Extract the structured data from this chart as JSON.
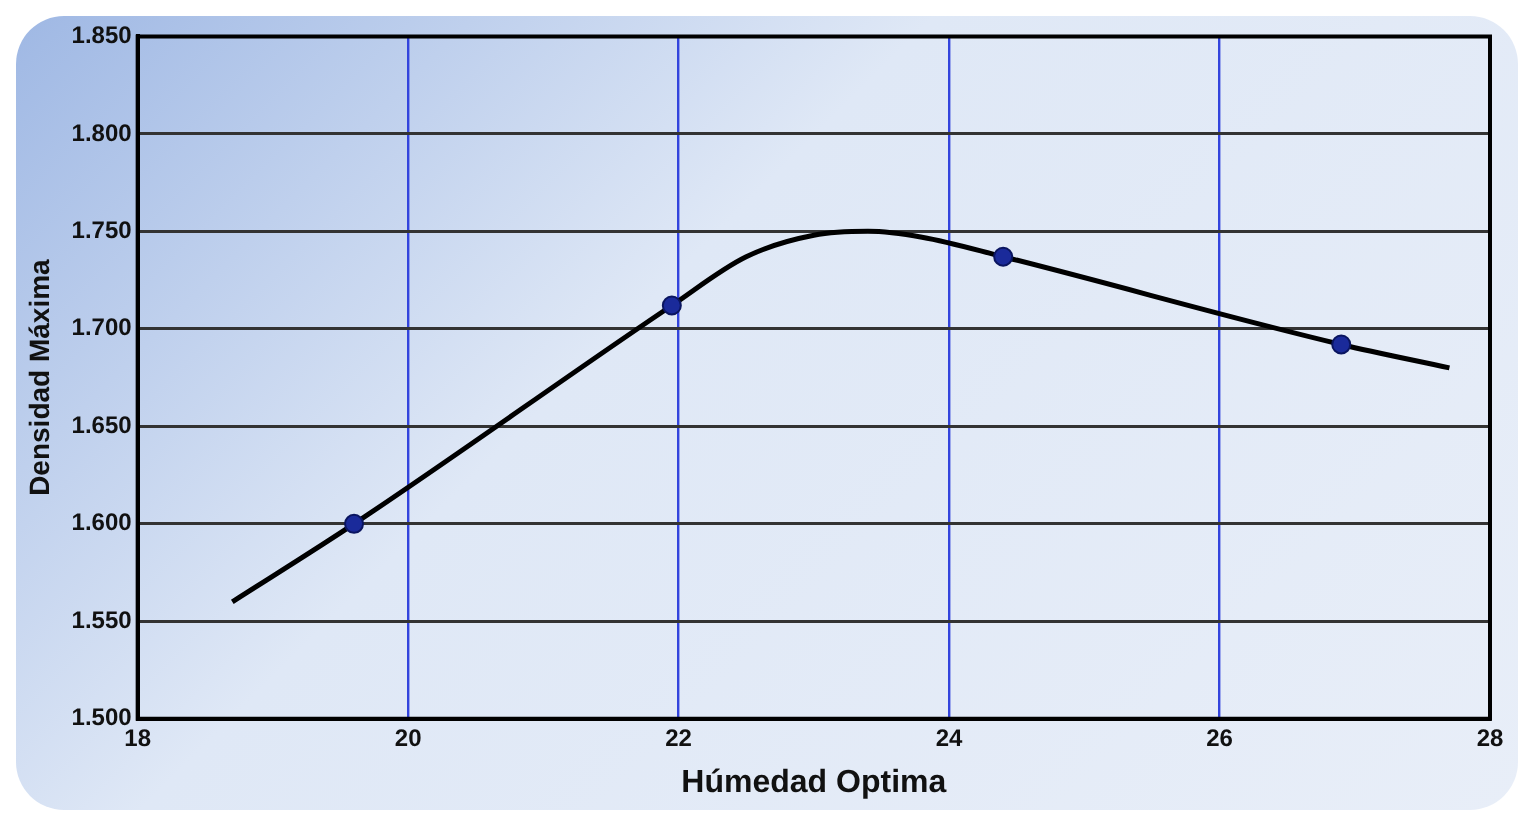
{
  "chart_data": {
    "type": "line",
    "xlabel": "Húmedad Optima",
    "ylabel": "Densidad Máxima",
    "xlim": [
      18,
      28
    ],
    "xticks": [
      18,
      20,
      22,
      24,
      26,
      28
    ],
    "ylim": [
      1.5,
      1.85
    ],
    "yticks": [
      {
        "value": 1.5,
        "label": "1.500"
      },
      {
        "value": 1.55,
        "label": "1.550"
      },
      {
        "value": 1.6,
        "label": "1.600"
      },
      {
        "value": 1.65,
        "label": "1.650"
      },
      {
        "value": 1.7,
        "label": "1.700"
      },
      {
        "value": 1.75,
        "label": "1.750"
      },
      {
        "value": 1.8,
        "label": "1.800"
      },
      {
        "value": 1.85,
        "label": "1.850"
      }
    ],
    "grid": true,
    "legend": false,
    "series": [
      {
        "type": "line",
        "color": "#000000",
        "marker": "none",
        "x": [
          18.7,
          19.6,
          21.95,
          22.5,
          23.0,
          23.4,
          23.8,
          24.4,
          26.9,
          27.7
        ],
        "values": [
          1.56,
          1.6,
          1.712,
          1.737,
          1.748,
          1.75,
          1.747,
          1.737,
          1.692,
          1.68
        ]
      },
      {
        "type": "scatter",
        "color": "#1a2a9a",
        "marker": "circle",
        "x": [
          19.6,
          21.95,
          24.4,
          26.9
        ],
        "values": [
          1.6,
          1.712,
          1.737,
          1.692
        ]
      }
    ]
  }
}
